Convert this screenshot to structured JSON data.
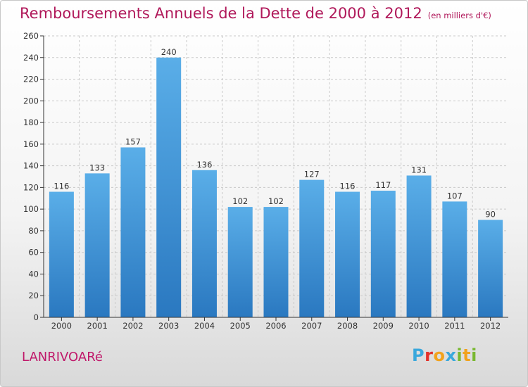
{
  "header": {
    "title": "Remboursements Annuels de la Dette de 2000 à 2012",
    "unit": "(en milliers d'€)"
  },
  "footer": {
    "commune": "LANRIVOARé",
    "logo_letters": [
      {
        "ch": "P",
        "color": "#3aa8dc"
      },
      {
        "ch": "r",
        "color": "#e2322a"
      },
      {
        "ch": "o",
        "color": "#f2a21c"
      },
      {
        "ch": "x",
        "color": "#3aa8dc"
      },
      {
        "ch": "i",
        "color": "#79b830"
      },
      {
        "ch": "t",
        "color": "#f2a21c"
      },
      {
        "ch": "i",
        "color": "#79b830"
      }
    ]
  },
  "colors": {
    "bar_top": "#5aaee8",
    "bar_bottom": "#2a78c0",
    "grid": "#c9c9c9",
    "axis": "#333333",
    "title": "#b0185a"
  },
  "chart_data": {
    "type": "bar",
    "title": "Remboursements Annuels de la Dette de 2000 à 2012",
    "subtitle": "(en milliers d'€)",
    "xlabel": "",
    "ylabel": "",
    "categories": [
      "2000",
      "2001",
      "2002",
      "2003",
      "2004",
      "2005",
      "2006",
      "2007",
      "2008",
      "2009",
      "2010",
      "2011",
      "2012"
    ],
    "values": [
      116,
      133,
      157,
      240,
      136,
      102,
      102,
      127,
      116,
      117,
      131,
      107,
      90
    ],
    "ylim": [
      0,
      260
    ],
    "yticks": [
      0,
      20,
      40,
      60,
      80,
      100,
      120,
      140,
      160,
      180,
      200,
      220,
      240,
      260
    ],
    "grid": true,
    "data_labels": true
  }
}
